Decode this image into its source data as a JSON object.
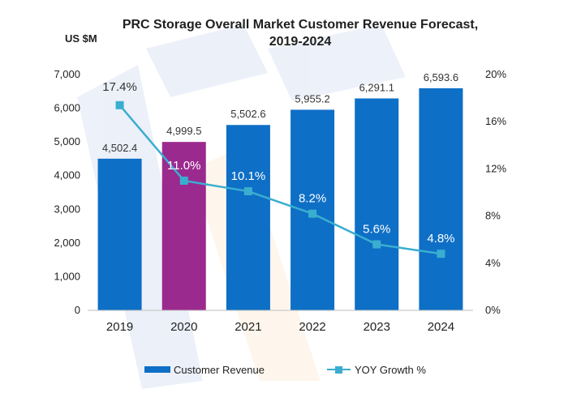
{
  "chart_data": {
    "type": "bar",
    "title": "PRC Storage Overall Market Customer Revenue Forecast,",
    "subtitle": "2019-2024",
    "ylabel": "US $M",
    "categories": [
      "2019",
      "2020",
      "2021",
      "2022",
      "2023",
      "2024"
    ],
    "ylim": [
      0,
      7000
    ],
    "yticks": [
      "0",
      "1,000",
      "2,000",
      "3,000",
      "4,000",
      "5,000",
      "6,000",
      "7,000"
    ],
    "y2lim": [
      0,
      20
    ],
    "y2ticks": [
      "0%",
      "4%",
      "8%",
      "12%",
      "16%",
      "20%"
    ],
    "legend_position": "bottom",
    "series": [
      {
        "name": "Customer Revenue",
        "type": "bar",
        "values": [
          4502.4,
          4999.5,
          5502.6,
          5955.2,
          6291.1,
          6593.6
        ],
        "labels": [
          "4,502.4",
          "4,999.5",
          "5,502.6",
          "5,955.2",
          "6,291.1",
          "6,593.6"
        ],
        "color": "#0e6fc6",
        "highlight_index": 1,
        "highlight_color": "#9b2a8f"
      },
      {
        "name": "YOY Growth %",
        "type": "line",
        "axis": "right",
        "values": [
          17.4,
          11.0,
          10.1,
          8.2,
          5.6,
          4.8
        ],
        "labels": [
          "17.4%",
          "11.0%",
          "10.1%",
          "8.2%",
          "5.6%",
          "4.8%"
        ],
        "color": "#3aaed0"
      }
    ]
  }
}
